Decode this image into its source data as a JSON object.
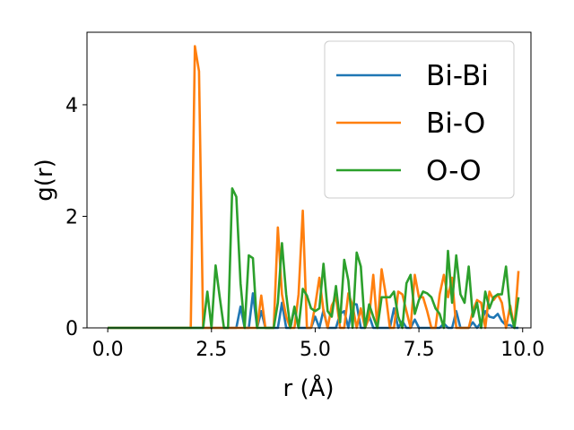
{
  "chart_data": {
    "type": "line",
    "xlabel": "r (Å)",
    "ylabel": "g(r)",
    "xlim": [
      -0.5,
      10.2
    ],
    "ylim": [
      0,
      5.3
    ],
    "xticks": [
      0.0,
      2.5,
      5.0,
      7.5,
      10.0
    ],
    "xtick_labels": [
      "0.0",
      "2.5",
      "5.0",
      "7.5",
      "10.0"
    ],
    "yticks": [
      0,
      2,
      4
    ],
    "ytick_labels": [
      "0",
      "2",
      "4"
    ],
    "grid": false,
    "legend_position": "top-right",
    "series": [
      {
        "name": "Bi-Bi",
        "color": "#1f77b4",
        "x": [
          0.0,
          3.0,
          3.1,
          3.2,
          3.3,
          3.4,
          3.5,
          3.6,
          3.7,
          3.8,
          3.9,
          4.0,
          4.1,
          4.2,
          4.3,
          4.4,
          4.5,
          4.6,
          4.7,
          4.8,
          4.9,
          5.0,
          5.1,
          5.2,
          5.3,
          5.4,
          5.5,
          5.6,
          5.7,
          5.8,
          5.9,
          6.0,
          6.1,
          6.2,
          6.3,
          6.4,
          6.5,
          6.6,
          6.7,
          6.8,
          6.9,
          7.0,
          7.1,
          7.2,
          7.3,
          7.4,
          7.5,
          7.6,
          7.7,
          7.8,
          7.9,
          8.0,
          8.1,
          8.2,
          8.3,
          8.4,
          8.5,
          8.6,
          8.7,
          8.8,
          8.9,
          9.0,
          9.1,
          9.2,
          9.3,
          9.4,
          9.5,
          9.6,
          9.7,
          9.8,
          9.9
        ],
        "y": [
          0.0,
          0.0,
          0.0,
          0.38,
          0.0,
          0.0,
          0.62,
          0.0,
          0.3,
          0.0,
          0.0,
          0.0,
          0.0,
          0.45,
          0.0,
          0.0,
          0.35,
          0.0,
          0.0,
          0.0,
          0.0,
          0.2,
          0.0,
          0.32,
          0.0,
          0.0,
          0.0,
          0.25,
          0.3,
          0.0,
          0.43,
          0.42,
          0.0,
          0.0,
          0.22,
          0.0,
          0.0,
          0.0,
          0.0,
          0.0,
          0.35,
          0.0,
          0.12,
          0.0,
          0.0,
          0.15,
          0.0,
          0.0,
          0.0,
          0.0,
          0.0,
          0.0,
          0.08,
          0.0,
          0.0,
          0.3,
          0.0,
          0.0,
          0.0,
          0.1,
          0.0,
          0.1,
          0.3,
          0.2,
          0.18,
          0.25,
          0.12,
          0.05,
          0.05,
          0.0,
          0.0
        ]
      },
      {
        "name": "Bi-O",
        "color": "#ff7f0e",
        "x": [
          0.0,
          1.9,
          2.0,
          2.1,
          2.2,
          2.3,
          2.4,
          2.5,
          2.6,
          2.7,
          2.8,
          2.9,
          3.0,
          3.1,
          3.2,
          3.3,
          3.4,
          3.5,
          3.6,
          3.7,
          3.8,
          3.9,
          4.0,
          4.1,
          4.2,
          4.3,
          4.4,
          4.5,
          4.6,
          4.7,
          4.8,
          4.9,
          5.0,
          5.1,
          5.2,
          5.3,
          5.4,
          5.5,
          5.6,
          5.7,
          5.8,
          5.9,
          6.0,
          6.1,
          6.2,
          6.3,
          6.4,
          6.5,
          6.6,
          6.7,
          6.8,
          6.9,
          7.0,
          7.1,
          7.2,
          7.3,
          7.4,
          7.5,
          7.6,
          7.7,
          7.8,
          7.9,
          8.0,
          8.1,
          8.2,
          8.3,
          8.4,
          8.5,
          8.6,
          8.7,
          8.8,
          8.9,
          9.0,
          9.1,
          9.2,
          9.3,
          9.4,
          9.5,
          9.6,
          9.7,
          9.8,
          9.9
        ],
        "y": [
          0.0,
          0.0,
          0.0,
          5.05,
          4.6,
          0.0,
          0.0,
          0.0,
          0.0,
          0.0,
          0.0,
          0.0,
          0.0,
          0.0,
          0.0,
          0.0,
          0.0,
          0.0,
          0.0,
          0.58,
          0.0,
          0.0,
          0.0,
          1.8,
          0.6,
          0.2,
          0.0,
          0.0,
          0.6,
          2.1,
          0.0,
          0.0,
          0.4,
          0.9,
          0.3,
          0.0,
          0.4,
          0.55,
          0.0,
          0.0,
          0.62,
          0.4,
          0.0,
          0.35,
          0.0,
          0.18,
          0.95,
          0.0,
          1.05,
          0.6,
          0.0,
          0.0,
          0.65,
          0.6,
          0.3,
          0.0,
          0.95,
          0.55,
          0.55,
          0.3,
          0.0,
          0.0,
          0.6,
          0.95,
          0.55,
          0.9,
          0.0,
          0.0,
          0.0,
          0.0,
          0.3,
          0.5,
          0.45,
          0.0,
          0.65,
          0.5,
          0.6,
          0.45,
          0.0,
          0.4,
          0.0,
          1.02
        ]
      },
      {
        "name": "O-O",
        "color": "#2ca02c",
        "x": [
          0.0,
          2.3,
          2.4,
          2.5,
          2.6,
          2.7,
          2.8,
          2.9,
          3.0,
          3.1,
          3.2,
          3.3,
          3.4,
          3.5,
          3.6,
          3.7,
          3.8,
          3.9,
          4.0,
          4.1,
          4.2,
          4.3,
          4.4,
          4.5,
          4.6,
          4.7,
          4.8,
          4.9,
          5.0,
          5.1,
          5.2,
          5.3,
          5.4,
          5.5,
          5.6,
          5.7,
          5.8,
          5.9,
          6.0,
          6.1,
          6.2,
          6.3,
          6.4,
          6.5,
          6.6,
          6.7,
          6.8,
          6.9,
          7.0,
          7.1,
          7.2,
          7.3,
          7.4,
          7.5,
          7.6,
          7.7,
          7.8,
          7.9,
          8.0,
          8.1,
          8.2,
          8.3,
          8.4,
          8.5,
          8.6,
          8.7,
          8.8,
          8.9,
          9.0,
          9.1,
          9.2,
          9.3,
          9.4,
          9.5,
          9.6,
          9.7,
          9.8,
          9.9
        ],
        "y": [
          0.0,
          0.0,
          0.65,
          0.0,
          1.12,
          0.55,
          0.0,
          0.0,
          2.5,
          2.35,
          0.8,
          0.0,
          1.3,
          1.25,
          0.0,
          0.0,
          0.0,
          0.0,
          0.0,
          0.45,
          1.52,
          0.6,
          0.0,
          0.38,
          0.0,
          0.7,
          0.58,
          0.35,
          0.3,
          0.35,
          1.15,
          0.3,
          0.2,
          0.75,
          0.1,
          1.22,
          0.85,
          0.0,
          1.35,
          1.1,
          0.0,
          0.42,
          0.2,
          0.0,
          0.55,
          0.55,
          0.55,
          0.65,
          0.2,
          0.0,
          0.8,
          0.95,
          0.25,
          0.5,
          0.65,
          0.62,
          0.55,
          0.35,
          0.25,
          0.0,
          1.38,
          0.45,
          1.3,
          0.6,
          0.45,
          1.1,
          0.2,
          0.45,
          0.0,
          0.65,
          0.35,
          0.55,
          0.6,
          0.6,
          1.1,
          0.3,
          0.0,
          0.55
        ]
      }
    ]
  }
}
